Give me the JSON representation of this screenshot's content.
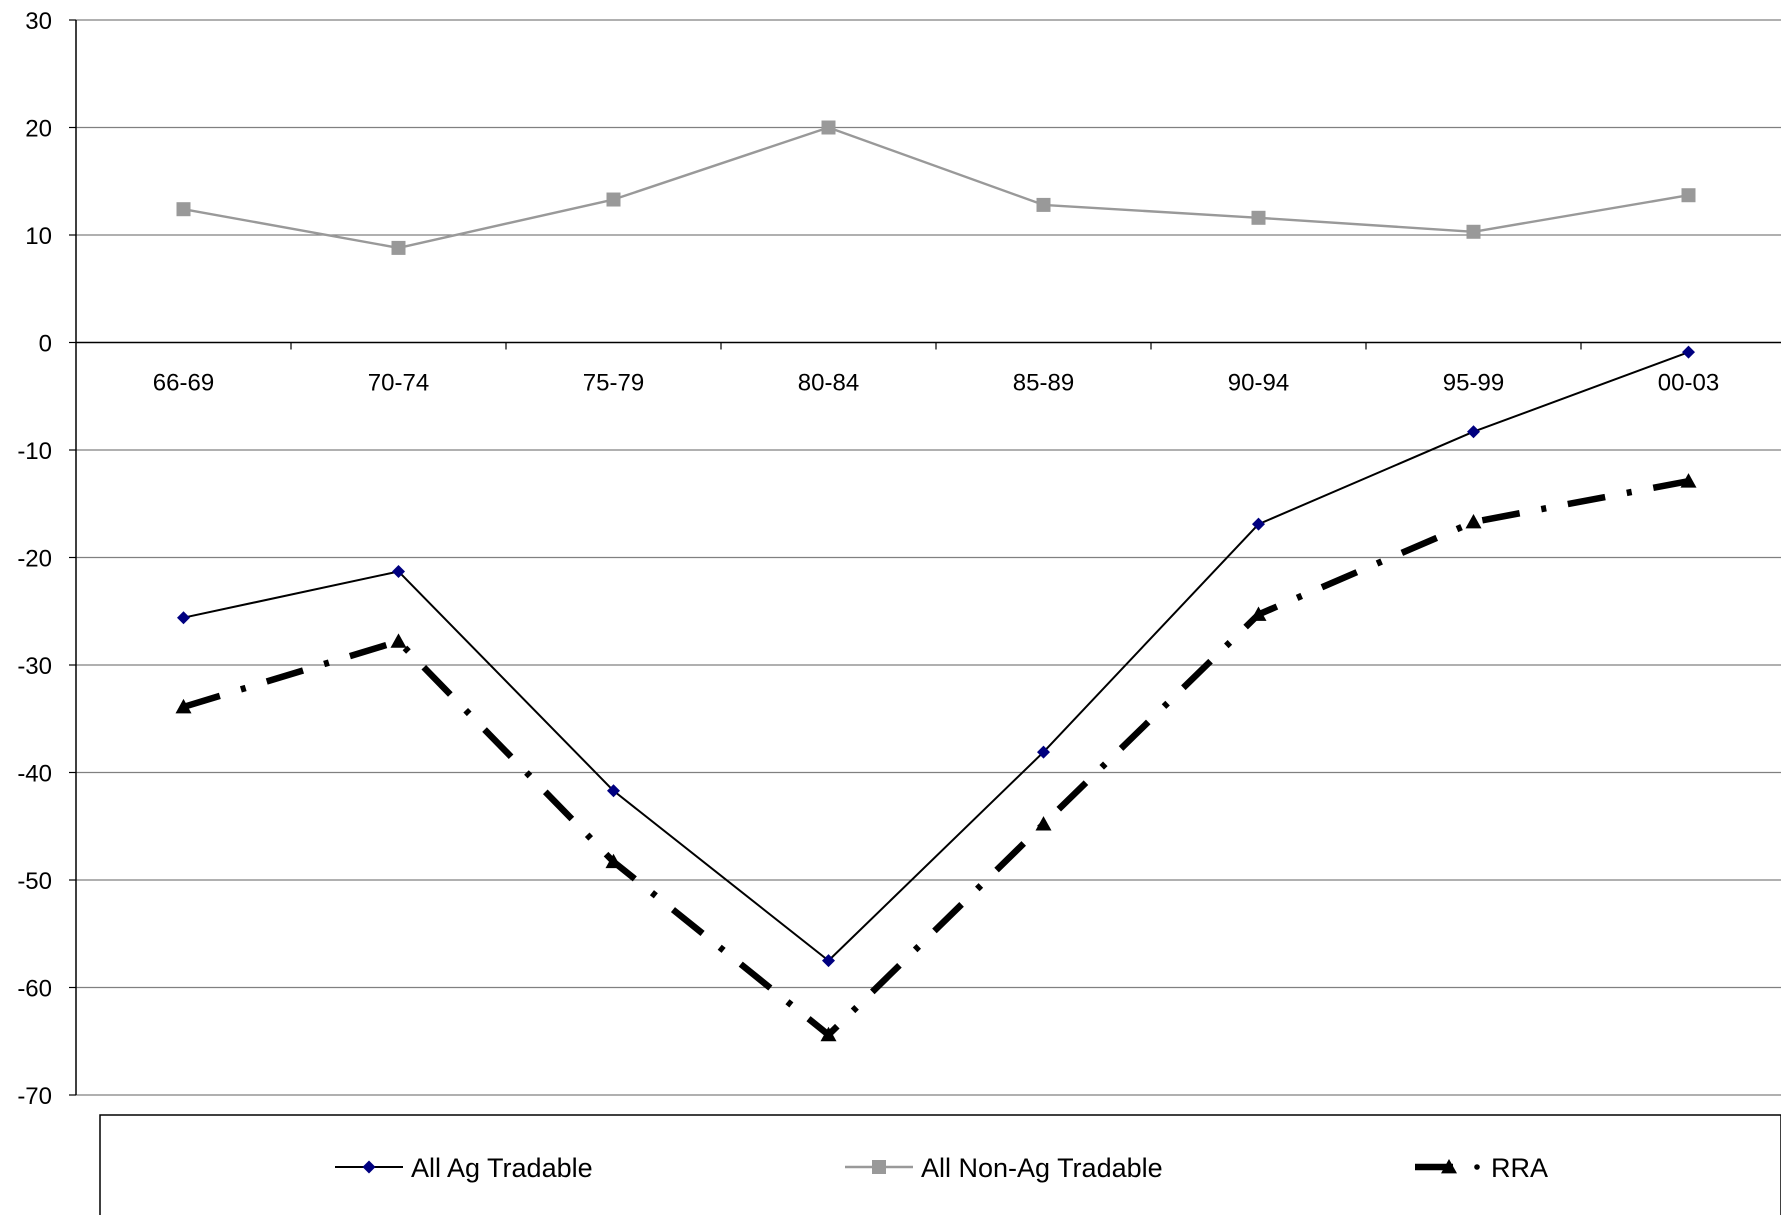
{
  "chart_data": {
    "type": "line",
    "title": "",
    "xlabel": "",
    "ylabel": "",
    "categories": [
      "66-69",
      "70-74",
      "75-79",
      "80-84",
      "85-89",
      "90-94",
      "95-99",
      "00-03"
    ],
    "ylim": [
      -70,
      30
    ],
    "yticks": [
      30,
      20,
      10,
      0,
      -10,
      -20,
      -30,
      -40,
      -50,
      -60,
      -70
    ],
    "ytick_labels": [
      "30",
      "20",
      "10",
      "0",
      "-10",
      "-20",
      "-30",
      "-40",
      "-50",
      "-60",
      "-70"
    ],
    "grid": true,
    "legend_position": "bottom",
    "series": [
      {
        "name": "All Ag Tradable",
        "values": [
          -25.6,
          -21.3,
          -41.7,
          -57.5,
          -38.1,
          -16.9,
          -8.3,
          -0.9
        ],
        "color": "#000080",
        "line_color": "#000000",
        "marker": "diamond",
        "line_style": "solid"
      },
      {
        "name": "All Non-Ag Tradable",
        "values": [
          12.4,
          8.8,
          13.3,
          20.0,
          12.8,
          11.6,
          10.3,
          13.7
        ],
        "color": "#999999",
        "line_color": "#999999",
        "marker": "square",
        "line_style": "solid"
      },
      {
        "name": "RRA",
        "values": [
          -33.9,
          -27.8,
          -48.3,
          -64.4,
          -44.8,
          -25.3,
          -16.7,
          -12.9
        ],
        "color": "#000000",
        "line_color": "#000000",
        "marker": "triangle",
        "line_style": "dash-dot"
      }
    ]
  }
}
